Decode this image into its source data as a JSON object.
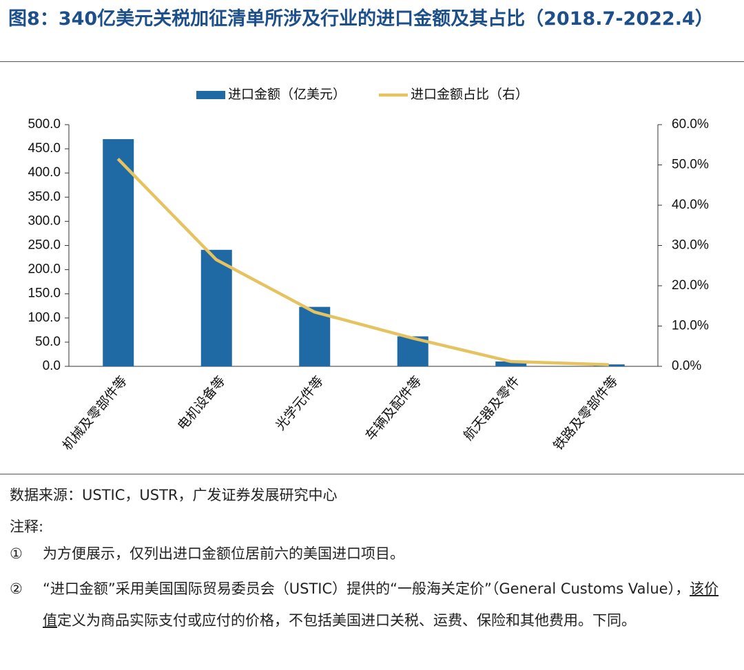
{
  "title": "图8：340亿美元关税加征清单所涉及行业的进口金额及其占比（2018.7-2022.4）",
  "chart_data": {
    "type": "bar",
    "categories": [
      "机械及零部件等",
      "电机设备等",
      "光学元件等",
      "车辆及配件等",
      "航天器及零件",
      "铁路及零部件等"
    ],
    "series": [
      {
        "name": "进口金额（亿美元）",
        "type": "bar",
        "color": "#1f6aa5",
        "values": [
          470,
          241,
          123,
          62,
          10,
          4
        ]
      },
      {
        "name": "进口金额占比（右）",
        "type": "line",
        "axis": "y2",
        "color": "#e4c360",
        "values": [
          51.5,
          26.5,
          13.5,
          7.0,
          1.2,
          0.4
        ]
      }
    ],
    "ylim": [
      0,
      500
    ],
    "yticks": [
      {
        "value": 0,
        "label": "0.0"
      },
      {
        "value": 50,
        "label": "50.0"
      },
      {
        "value": 100,
        "label": "100.0"
      },
      {
        "value": 150,
        "label": "150.0"
      },
      {
        "value": 200,
        "label": "200.0"
      },
      {
        "value": 250,
        "label": "250.0"
      },
      {
        "value": 300,
        "label": "300.0"
      },
      {
        "value": 350,
        "label": "350.0"
      },
      {
        "value": 400,
        "label": "400.0"
      },
      {
        "value": 450,
        "label": "450.0"
      },
      {
        "value": 500,
        "label": "500.0"
      }
    ],
    "y2lim": [
      0,
      60
    ],
    "y2ticks": [
      {
        "value": 0,
        "label": "0.0%"
      },
      {
        "value": 10,
        "label": "10.0%"
      },
      {
        "value": 20,
        "label": "20.0%"
      },
      {
        "value": 30,
        "label": "30.0%"
      },
      {
        "value": 40,
        "label": "40.0%"
      },
      {
        "value": 50,
        "label": "50.0%"
      },
      {
        "value": 60,
        "label": "60.0%"
      }
    ],
    "legend": "top",
    "grid": false
  },
  "source": "数据来源：USTIC，USTR，广发证券发展研究中心",
  "notes_label": "注释:",
  "notes": [
    {
      "marker": "①",
      "parts": [
        "为方便展示，仅列出进口金额位居前六的美国进口项目。"
      ]
    },
    {
      "marker": "②",
      "parts": [
        "“进口金额”采用美国国际贸易委员会（USTIC）提供的“一般海关定价”（General Customs Value），",
        "该价值",
        "定义为商品实际支付或应付的价格，不包括美国进口关税、运费、保险和其他费用。下同。"
      ]
    }
  ]
}
